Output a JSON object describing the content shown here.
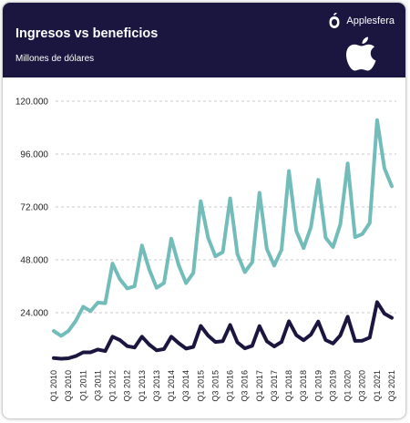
{
  "header": {
    "title": "Ingresos vs beneficios",
    "subtitle": "Millones de dólares",
    "brand": "Applesfera"
  },
  "colors": {
    "header_bg": "#1b1640",
    "revenue_line": "#72bcba",
    "profit_line": "#1b1640",
    "grid": "#c8c8c8"
  },
  "icons": [
    "applesfera-logo-icon",
    "apple-logo-icon"
  ],
  "chart_data": {
    "type": "line",
    "title": "Ingresos vs beneficios",
    "subtitle": "Millones de dólares",
    "xlabel": "",
    "ylabel": "",
    "ylim": [
      0,
      120000
    ],
    "yticks": [
      "24.000",
      "48.000",
      "72.000",
      "96.000",
      "120.000"
    ],
    "ytick_values": [
      24000,
      48000,
      72000,
      96000,
      120000
    ],
    "grid": "horizontal dashed",
    "legend": "none",
    "x": [
      "Q1 2010",
      "Q2 2010",
      "Q3 2010",
      "Q4 2010",
      "Q1 2011",
      "Q2 2011",
      "Q3 2011",
      "Q4 2011",
      "Q1 2012",
      "Q2 2012",
      "Q3 2012",
      "Q4 2012",
      "Q1 2013",
      "Q2 2013",
      "Q3 2013",
      "Q4 2013",
      "Q1 2014",
      "Q2 2014",
      "Q3 2014",
      "Q4 2014",
      "Q1 2015",
      "Q2 2015",
      "Q3 2015",
      "Q4 2015",
      "Q1 2016",
      "Q2 2016",
      "Q3 2016",
      "Q4 2016",
      "Q1 2017",
      "Q2 2017",
      "Q3 2017",
      "Q4 2017",
      "Q1 2018",
      "Q2 2018",
      "Q3 2018",
      "Q4 2018",
      "Q1 2019",
      "Q2 2019",
      "Q3 2019",
      "Q4 2019",
      "Q1 2020",
      "Q2 2020",
      "Q3 2020",
      "Q4 2020",
      "Q1 2021",
      "Q2 2021",
      "Q3 2021"
    ],
    "xtick_labels": [
      "Q1 2010",
      "Q3 2010",
      "Q1 2011",
      "Q3 2011",
      "Q1 2012",
      "Q3 2012",
      "Q1 2013",
      "Q3 2013",
      "Q1 2014",
      "Q3 2014",
      "Q1 2015",
      "Q3 2015",
      "Q1 2016",
      "Q3 2016",
      "Q1 2017",
      "Q3 2017",
      "Q1 2018",
      "Q3 2018",
      "Q1 2019",
      "Q3 2019",
      "Q1 2020",
      "Q3 2020",
      "Q1 2021",
      "Q3 2021"
    ],
    "series": [
      {
        "values": [
          15700,
          13500,
          15700,
          20300,
          26700,
          24700,
          28600,
          28300,
          46300,
          39200,
          35000,
          36000,
          54500,
          43600,
          35300,
          37500,
          57600,
          45600,
          37400,
          42100,
          74600,
          58000,
          49600,
          51500,
          75900,
          50600,
          42400,
          46900,
          78400,
          52900,
          45400,
          52600,
          88300,
          61100,
          53300,
          62900,
          84300,
          58000,
          53800,
          64000,
          91800,
          58300,
          59700,
          64700,
          111400,
          89600,
          81400
        ]
      },
      {
        "values": [
          3400,
          3100,
          3300,
          4300,
          6000,
          6000,
          7300,
          6600,
          13100,
          11600,
          8800,
          8200,
          13100,
          9500,
          6900,
          7500,
          13100,
          10200,
          7700,
          8500,
          18000,
          13600,
          10700,
          11100,
          18400,
          10500,
          7800,
          9000,
          17900,
          11000,
          8700,
          10700,
          20100,
          13800,
          11500,
          14100,
          20000,
          11600,
          10000,
          13700,
          22200,
          11200,
          11300,
          12700,
          28800,
          23600,
          21700
        ]
      }
    ]
  }
}
